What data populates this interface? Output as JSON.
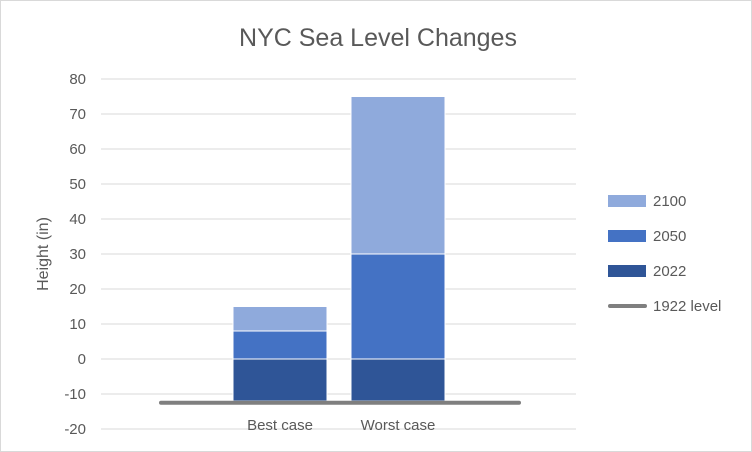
{
  "chart_data": {
    "type": "bar",
    "stacked": true,
    "title": "NYC Sea Level Changes",
    "ylabel": "Height (in)",
    "xlabel": "",
    "ylim": [
      -20,
      80
    ],
    "yticks": [
      80,
      70,
      60,
      50,
      40,
      30,
      20,
      10,
      0,
      -10,
      -20
    ],
    "categories": [
      "Best case",
      "Worst case"
    ],
    "grid": true,
    "legend_position": "right",
    "series": [
      {
        "name": "2022",
        "color": "#2f5597",
        "bottom": [
          -12,
          -12
        ],
        "top": [
          0,
          0
        ]
      },
      {
        "name": "2050",
        "color": "#4472c4",
        "bottom": [
          0,
          0
        ],
        "top": [
          8,
          30
        ]
      },
      {
        "name": "2100",
        "color": "#8faadc",
        "bottom": [
          8,
          30
        ],
        "top": [
          15,
          75
        ]
      }
    ],
    "reference_line": {
      "name": "1922 level",
      "value": -12.5,
      "color": "#7f7f7f"
    },
    "legend_order": [
      "2100",
      "2050",
      "2022",
      "1922 level"
    ]
  }
}
